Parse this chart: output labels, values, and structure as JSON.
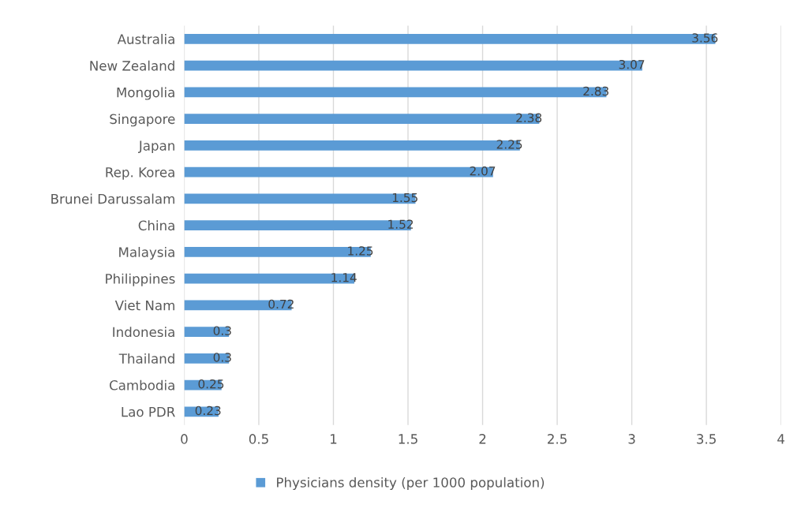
{
  "chart_data": {
    "type": "bar",
    "orientation": "horizontal",
    "categories": [
      "Australia",
      "New Zealand",
      "Mongolia",
      "Singapore",
      "Japan",
      "Rep. Korea",
      "Brunei Darussalam",
      "China",
      "Malaysia",
      "Philippines",
      "Viet Nam",
      "Indonesia",
      "Thailand",
      "Cambodia",
      "Lao PDR"
    ],
    "series": [
      {
        "name": "Physicians density (per 1000 population)",
        "color": "#5b9bd5",
        "values": [
          3.56,
          3.07,
          2.83,
          2.38,
          2.25,
          2.07,
          1.55,
          1.52,
          1.25,
          1.14,
          0.72,
          0.3,
          0.3,
          0.25,
          0.23
        ]
      }
    ],
    "xlim": [
      0,
      4
    ],
    "xticks": [
      0,
      0.5,
      1,
      1.5,
      2,
      2.5,
      3,
      3.5,
      4
    ],
    "grid": "x",
    "legend": "bottom",
    "data_labels": true
  }
}
